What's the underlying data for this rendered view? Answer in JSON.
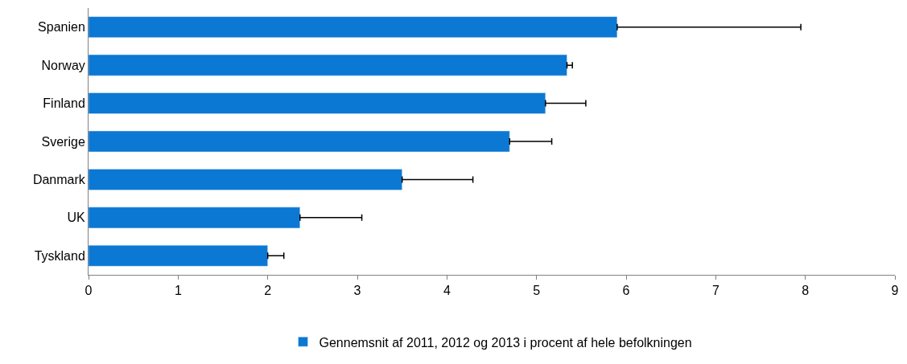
{
  "chart_data": {
    "type": "bar",
    "orientation": "horizontal",
    "categories": [
      "Spanien",
      "Norway",
      "Finland",
      "Sverige",
      "Danmark",
      "UK",
      "Tyskland"
    ],
    "series": [
      {
        "name": "Gennemsnit af 2011, 2012 og 2013 i procent af hele befolkningen",
        "color": "#0b78d4",
        "values": [
          5.9,
          5.34,
          5.1,
          4.7,
          3.5,
          2.36,
          2.0
        ],
        "errors": [
          [
            5.9,
            7.95
          ],
          [
            5.34,
            5.4
          ],
          [
            5.1,
            5.55
          ],
          [
            4.7,
            5.17
          ],
          [
            3.5,
            4.29
          ],
          [
            2.36,
            3.05
          ],
          [
            2.0,
            2.18
          ]
        ]
      }
    ],
    "xlim": [
      0,
      9
    ],
    "xticks": [
      0,
      1,
      2,
      3,
      4,
      5,
      6,
      7,
      8,
      9
    ],
    "legend": "bottom"
  }
}
